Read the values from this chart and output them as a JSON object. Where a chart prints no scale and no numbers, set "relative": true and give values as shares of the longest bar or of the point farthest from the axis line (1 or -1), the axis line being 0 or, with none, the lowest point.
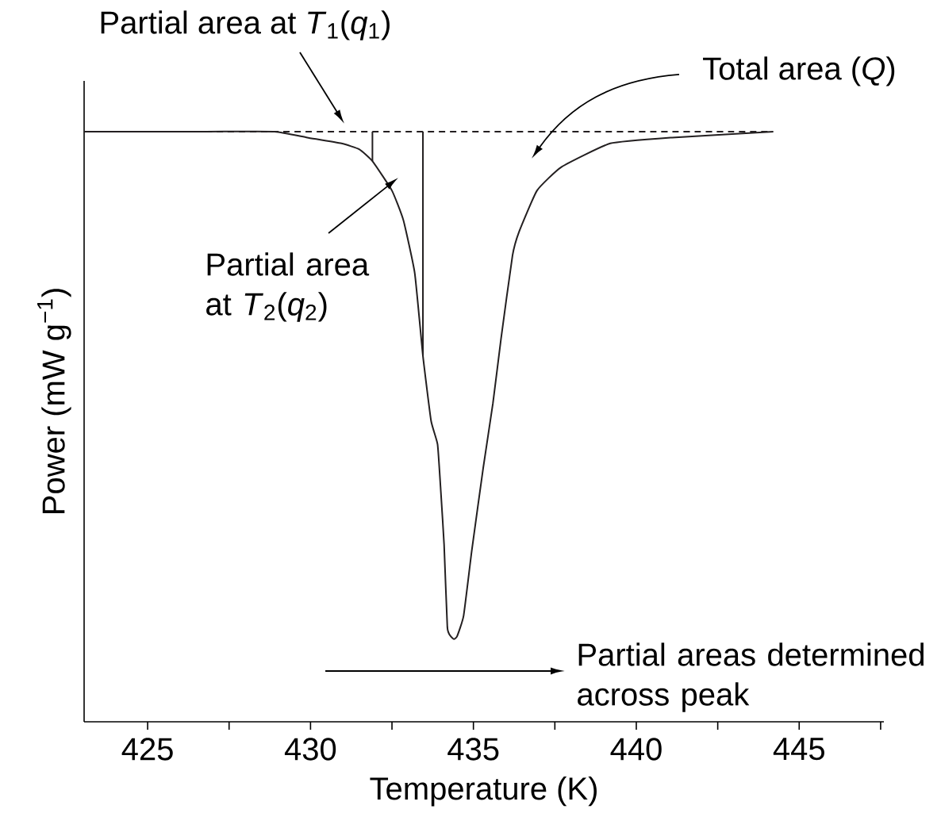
{
  "chart_data": {
    "type": "line",
    "xlabel": "Temperature (K)",
    "ylabel": "Power (mW g$^{−1}$)",
    "relative": true,
    "xlim": [
      423.05,
      447.6
    ],
    "xticks": [
      425,
      {
        "value": 427.5,
        "label": null
      },
      430,
      {
        "value": 432.5,
        "label": null
      },
      435,
      {
        "value": 437.5,
        "label": null
      },
      440,
      {
        "value": 442.5,
        "label": null
      },
      445,
      {
        "value": 447.5,
        "label": null
      }
    ],
    "series": [
      {
        "color": "#231f20",
        "line_style": "solid",
        "x": [
          423.05,
          426.8,
          428.9,
          429.9,
          430.95,
          431.5,
          431.9,
          432.5,
          432.85,
          433.2,
          433.45,
          433.7,
          433.9,
          434.0,
          434.1,
          434.2,
          434.3,
          434.4,
          434.5,
          434.7,
          434.95,
          435.3,
          435.6,
          435.85,
          436.2,
          436.4,
          436.95,
          437.7,
          439.2,
          441.1,
          444.2
        ],
        "values": [
          1.0,
          1.0,
          1.0,
          0.99,
          0.98,
          0.97,
          0.95,
          0.9,
          0.85,
          0.76,
          0.62,
          0.51,
          0.47,
          0.39,
          0.3,
          0.16,
          0.145,
          0.14,
          0.145,
          0.18,
          0.29,
          0.43,
          0.54,
          0.65,
          0.79,
          0.83,
          0.9,
          0.94,
          0.98,
          0.99,
          1.0
        ]
      },
      {
        "color": "#231f20",
        "line_style": "dashed",
        "x": [
          426.1,
          444.2
        ],
        "values": [
          1.0,
          1.0
        ]
      },
      {
        "color": "#231f20",
        "line_style": "solid",
        "x": [
          431.9,
          431.9
        ],
        "values": [
          1.0,
          0.95
        ]
      },
      {
        "color": "#231f20",
        "line_style": "solid",
        "x": [
          433.45,
          433.45
        ],
        "values": [
          1.0,
          0.62
        ]
      }
    ],
    "annotations": [
      "Partial area at *T*$_{1}$(*q*$_{1}$)",
      "Total area (*Q*)",
      "Partial area at *T*$_{2}$(*q*$_{2}$)",
      "Partial areas determined across peak"
    ]
  }
}
